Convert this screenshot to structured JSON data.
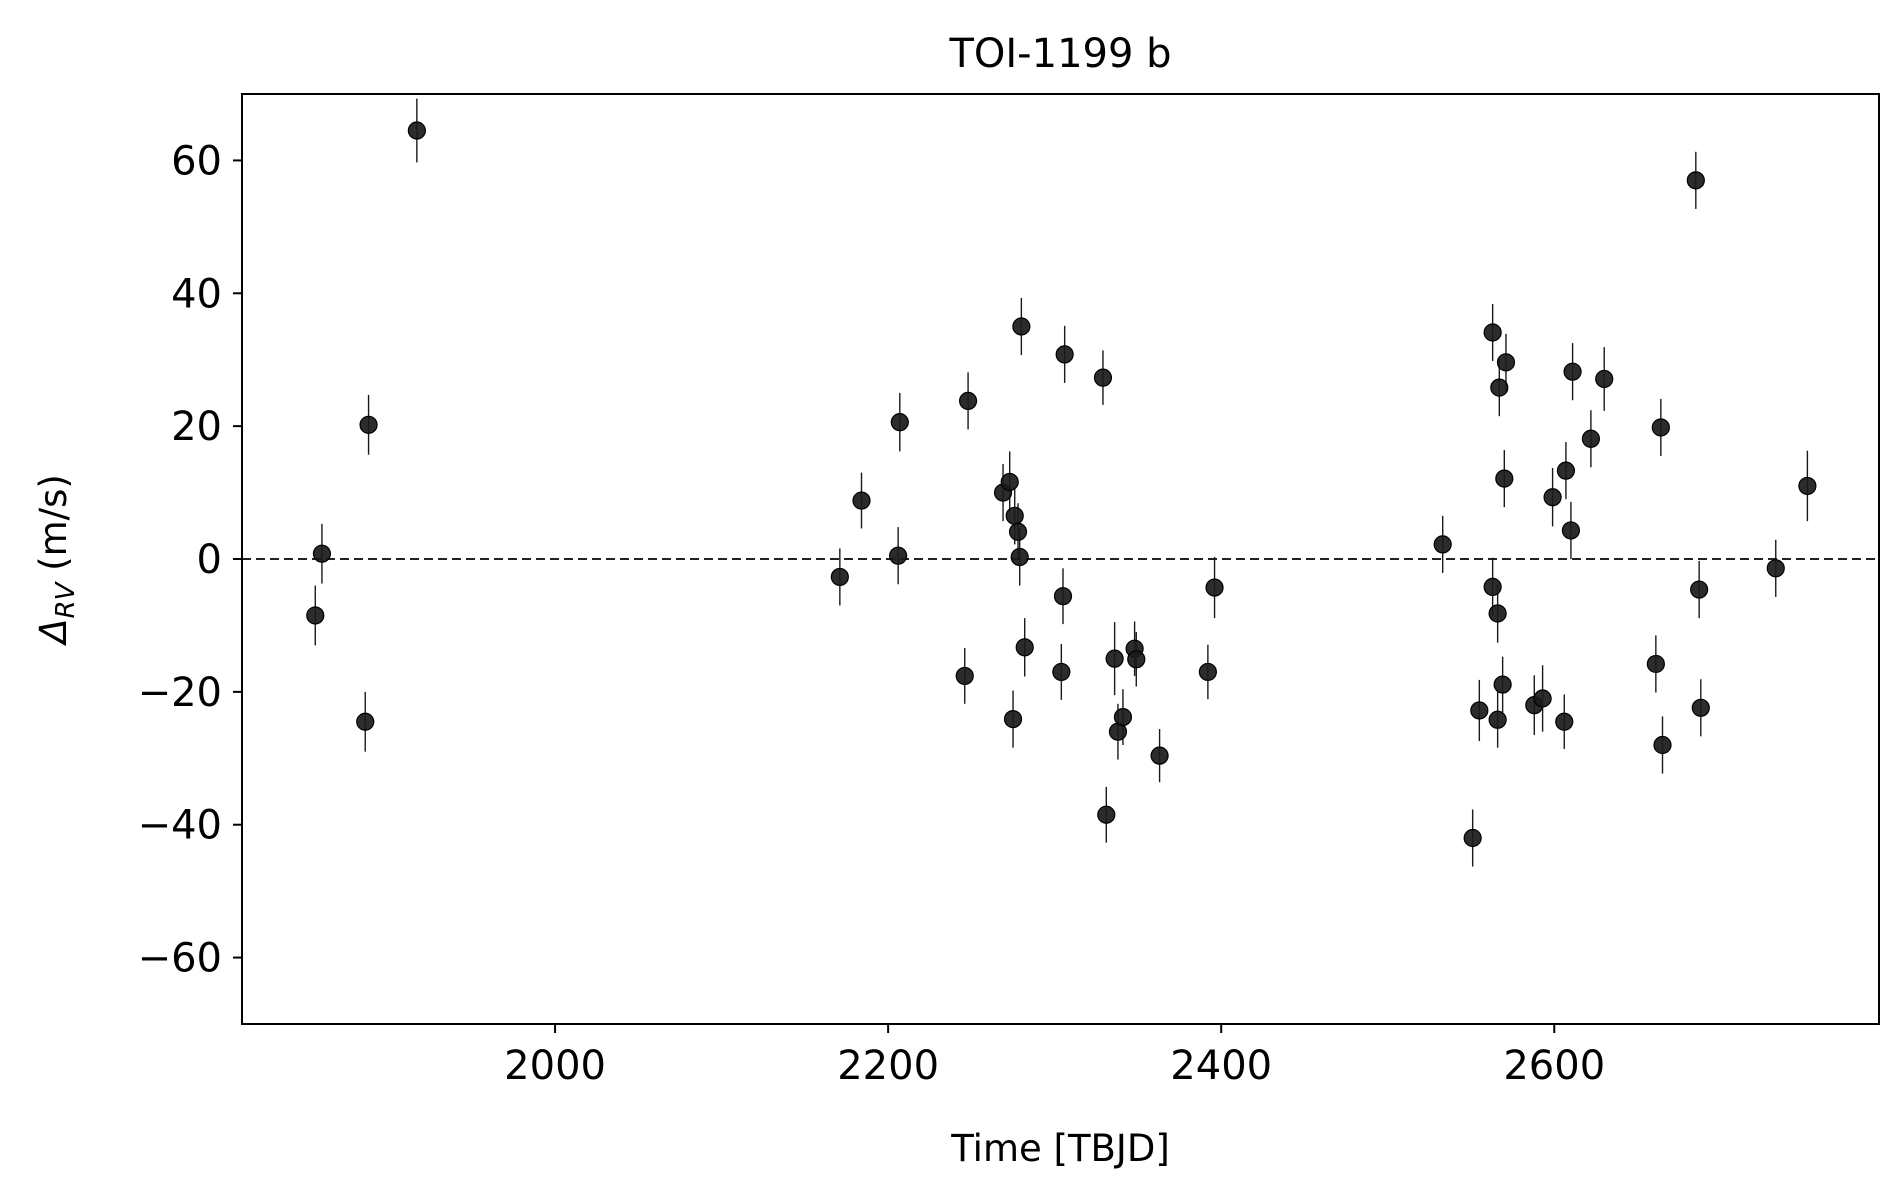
{
  "chart_data": {
    "type": "scatter",
    "title": "TOI-1199 b",
    "xlabel": "Time [TBJD]",
    "ylabel": {
      "delta": "Δ",
      "sub": "RV",
      "unit": " (m/s)"
    },
    "xlim": [
      1812,
      2795
    ],
    "ylim": [
      -70,
      70
    ],
    "xticks": [
      2000,
      2200,
      2400,
      2600
    ],
    "xtick_labels": [
      "2000",
      "2200",
      "2400",
      "2600"
    ],
    "yticks": [
      -60,
      -40,
      -20,
      0,
      20,
      40,
      60
    ],
    "ytick_labels": [
      "−60",
      "−40",
      "−20",
      "0",
      "20",
      "40",
      "60"
    ],
    "reference_line": {
      "y": 0,
      "style": "dashed"
    },
    "grid": false,
    "marker_color": "#1a1a1a",
    "points": [
      {
        "x": 1856,
        "y": -8.5,
        "err": 4.5
      },
      {
        "x": 1860,
        "y": 0.8,
        "err": 4.5
      },
      {
        "x": 1886,
        "y": -24.5,
        "err": 4.5
      },
      {
        "x": 1888,
        "y": 20.2,
        "err": 4.5
      },
      {
        "x": 1917,
        "y": 64.5,
        "err": 4.8
      },
      {
        "x": 2171,
        "y": -2.7,
        "err": 4.3
      },
      {
        "x": 2184,
        "y": 8.8,
        "err": 4.2
      },
      {
        "x": 2206,
        "y": 0.5,
        "err": 4.3
      },
      {
        "x": 2207,
        "y": 20.6,
        "err": 4.4
      },
      {
        "x": 2246,
        "y": -17.6,
        "err": 4.2
      },
      {
        "x": 2248,
        "y": 23.8,
        "err": 4.3
      },
      {
        "x": 2269,
        "y": 10.0,
        "err": 4.3
      },
      {
        "x": 2273,
        "y": 11.6,
        "err": 4.6
      },
      {
        "x": 2275,
        "y": -24.1,
        "err": 4.3
      },
      {
        "x": 2276,
        "y": 6.5,
        "err": 4.3
      },
      {
        "x": 2278,
        "y": 4.1,
        "err": 4.3
      },
      {
        "x": 2279,
        "y": 0.3,
        "err": 4.3
      },
      {
        "x": 2280,
        "y": 35.0,
        "err": 4.3
      },
      {
        "x": 2282,
        "y": -13.3,
        "err": 4.4
      },
      {
        "x": 2304,
        "y": -17.0,
        "err": 4.2
      },
      {
        "x": 2305,
        "y": -5.6,
        "err": 4.2
      },
      {
        "x": 2306,
        "y": 30.8,
        "err": 4.3
      },
      {
        "x": 2329,
        "y": 27.3,
        "err": 4.1
      },
      {
        "x": 2331,
        "y": -38.5,
        "err": 4.2
      },
      {
        "x": 2336,
        "y": -15.0,
        "err": 5.5
      },
      {
        "x": 2338,
        "y": -26.0,
        "err": 4.2
      },
      {
        "x": 2341,
        "y": -23.8,
        "err": 4.2
      },
      {
        "x": 2348,
        "y": -13.5,
        "err": 4.1
      },
      {
        "x": 2349,
        "y": -15.1,
        "err": 4.1
      },
      {
        "x": 2363,
        "y": -29.6,
        "err": 4.0
      },
      {
        "x": 2392,
        "y": -17.0,
        "err": 4.1
      },
      {
        "x": 2396,
        "y": -4.3,
        "err": 4.6
      },
      {
        "x": 2533,
        "y": 2.2,
        "err": 4.3
      },
      {
        "x": 2551,
        "y": -42.0,
        "err": 4.3
      },
      {
        "x": 2555,
        "y": -22.8,
        "err": 4.6
      },
      {
        "x": 2563,
        "y": 34.1,
        "err": 4.3
      },
      {
        "x": 2563,
        "y": -4.2,
        "err": 4.4
      },
      {
        "x": 2566,
        "y": -24.2,
        "err": 4.2
      },
      {
        "x": 2566,
        "y": -8.2,
        "err": 4.4
      },
      {
        "x": 2567,
        "y": 25.8,
        "err": 4.3
      },
      {
        "x": 2569,
        "y": -18.9,
        "err": 4.2
      },
      {
        "x": 2570,
        "y": 12.1,
        "err": 4.3
      },
      {
        "x": 2571,
        "y": 29.6,
        "err": 4.3
      },
      {
        "x": 2588,
        "y": -22.0,
        "err": 4.5
      },
      {
        "x": 2593,
        "y": -21.0,
        "err": 5.0
      },
      {
        "x": 2599,
        "y": 9.3,
        "err": 4.4
      },
      {
        "x": 2606,
        "y": -24.5,
        "err": 4.1
      },
      {
        "x": 2607,
        "y": 13.3,
        "err": 4.3
      },
      {
        "x": 2610,
        "y": 4.3,
        "err": 4.3
      },
      {
        "x": 2611,
        "y": 28.2,
        "err": 4.3
      },
      {
        "x": 2622,
        "y": 18.1,
        "err": 4.3
      },
      {
        "x": 2630,
        "y": 27.1,
        "err": 4.8
      },
      {
        "x": 2661,
        "y": -15.8,
        "err": 4.3
      },
      {
        "x": 2664,
        "y": 19.8,
        "err": 4.3
      },
      {
        "x": 2665,
        "y": -28.0,
        "err": 4.3
      },
      {
        "x": 2685,
        "y": 57.0,
        "err": 4.3
      },
      {
        "x": 2687,
        "y": -4.6,
        "err": 4.3
      },
      {
        "x": 2688,
        "y": -22.4,
        "err": 4.3
      },
      {
        "x": 2733,
        "y": -1.4,
        "err": 4.3
      },
      {
        "x": 2752,
        "y": 11.0,
        "err": 5.3
      }
    ]
  }
}
